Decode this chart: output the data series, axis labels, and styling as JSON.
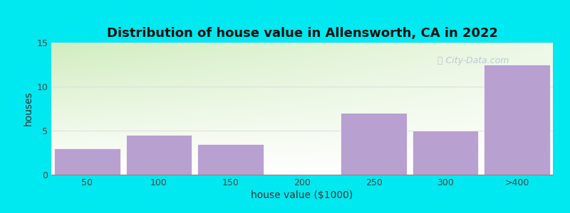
{
  "title": "Distribution of house value in Allensworth, CA in 2022",
  "xlabel": "house value ($1000)",
  "ylabel": "houses",
  "categories": [
    "50",
    "100",
    "150",
    "200",
    "250",
    "300",
    ">400"
  ],
  "values": [
    3,
    4.5,
    3.5,
    0,
    7,
    5,
    12.5
  ],
  "bar_color": "#b8a0d0",
  "ylim": [
    0,
    15
  ],
  "yticks": [
    0,
    5,
    10,
    15
  ],
  "background_color": "#00e8f0",
  "plot_bg_top_left": "#d8f0cc",
  "plot_bg_top_right": "#e8f4f8",
  "plot_bg_bottom": "#ffffff",
  "title_fontsize": 13,
  "axis_label_fontsize": 10,
  "tick_fontsize": 9,
  "watermark_text": "City-Data.com",
  "watermark_color": "#aabbcc",
  "grid_color": "#dddddd",
  "title_color": "#111111"
}
